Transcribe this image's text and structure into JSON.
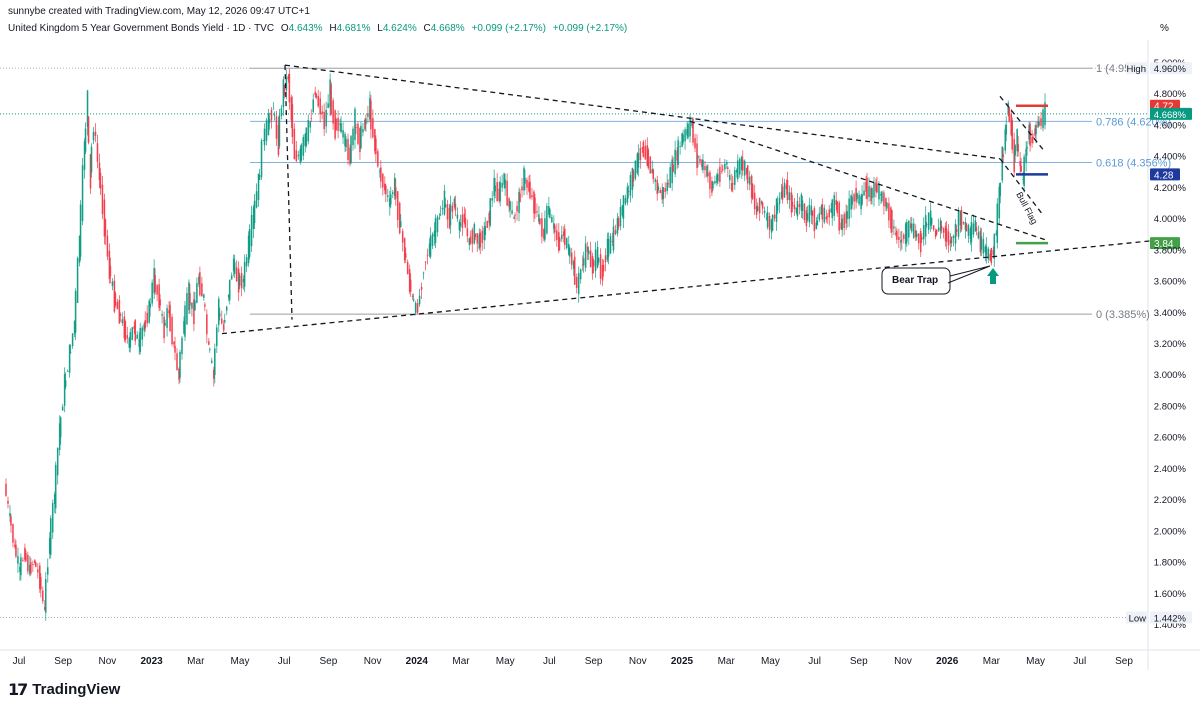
{
  "header": {
    "note": "sunnybe created with TradingView.com, May 12, 2026 09:47 UTC+1",
    "symbol": "United Kingdom 5 Year Government Bonds Yield · 1D · TVC",
    "o_label": "O",
    "o_value": "4.643%",
    "h_label": "H",
    "h_value": "4.681%",
    "l_label": "L",
    "l_value": "4.624%",
    "c_label": "C",
    "c_value": "4.668%",
    "change1": "+0.099 (+2.17%)",
    "change2": "+0.099 (+2.17%)"
  },
  "price_axis_unit": "%",
  "brand": {
    "mark": "17",
    "name": "TradingView"
  },
  "colors": {
    "up": "#089981",
    "down": "#f23645",
    "fib": "#5b9bd5",
    "red_level": "#e53935",
    "blue_level": "#1e3a9e",
    "green_level": "#43a047"
  },
  "chart_data": {
    "type": "candlestick",
    "title": "United Kingdom 5 Year Government Bonds Yield",
    "ylim": [
      1.35,
      5.0
    ],
    "y_ticks": [
      "5.000%",
      "4.800%",
      "4.600%",
      "4.400%",
      "4.200%",
      "4.000%",
      "3.800%",
      "3.600%",
      "3.400%",
      "3.200%",
      "3.000%",
      "2.800%",
      "2.600%",
      "2.400%",
      "2.200%",
      "2.000%",
      "1.800%",
      "1.600%",
      "1.400%"
    ],
    "x_ticks": [
      "Jul",
      "Sep",
      "Nov",
      "2023",
      "Mar",
      "May",
      "Jul",
      "Sep",
      "Nov",
      "2024",
      "Mar",
      "May",
      "Jul",
      "Sep",
      "Nov",
      "2025",
      "Mar",
      "May",
      "Jul",
      "Sep",
      "Nov",
      "2026",
      "Mar",
      "May",
      "Jul",
      "Sep"
    ],
    "x_bold": [
      "2023",
      "2024",
      "2025",
      "2026"
    ],
    "path_points": [
      [
        0,
        2.3
      ],
      [
        5,
        2.1
      ],
      [
        10,
        1.9
      ],
      [
        15,
        1.75
      ],
      [
        20,
        1.85
      ],
      [
        25,
        1.75
      ],
      [
        30,
        1.8
      ],
      [
        35,
        1.7
      ],
      [
        40,
        1.5
      ],
      [
        45,
        1.9
      ],
      [
        50,
        2.2
      ],
      [
        55,
        2.6
      ],
      [
        60,
        2.9
      ],
      [
        65,
        3.1
      ],
      [
        70,
        3.3
      ],
      [
        75,
        3.8
      ],
      [
        80,
        4.4
      ],
      [
        83,
        4.7
      ],
      [
        86,
        4.3
      ],
      [
        90,
        4.6
      ],
      [
        95,
        4.3
      ],
      [
        100,
        4.0
      ],
      [
        105,
        3.7
      ],
      [
        110,
        3.5
      ],
      [
        115,
        3.4
      ],
      [
        120,
        3.3
      ],
      [
        125,
        3.2
      ],
      [
        130,
        3.3
      ],
      [
        135,
        3.2
      ],
      [
        140,
        3.3
      ],
      [
        145,
        3.4
      ],
      [
        150,
        3.6
      ],
      [
        155,
        3.5
      ],
      [
        160,
        3.3
      ],
      [
        165,
        3.4
      ],
      [
        170,
        3.2
      ],
      [
        175,
        3.0
      ],
      [
        180,
        3.3
      ],
      [
        185,
        3.5
      ],
      [
        190,
        3.4
      ],
      [
        195,
        3.6
      ],
      [
        200,
        3.5
      ],
      [
        205,
        3.2
      ],
      [
        210,
        3.0
      ],
      [
        215,
        3.4
      ],
      [
        220,
        3.3
      ],
      [
        225,
        3.5
      ],
      [
        230,
        3.7
      ],
      [
        235,
        3.6
      ],
      [
        240,
        3.6
      ],
      [
        245,
        3.8
      ],
      [
        250,
        4.0
      ],
      [
        255,
        4.2
      ],
      [
        260,
        4.5
      ],
      [
        265,
        4.6
      ],
      [
        270,
        4.7
      ],
      [
        275,
        4.5
      ],
      [
        280,
        4.8
      ],
      [
        285,
        4.9
      ],
      [
        288,
        4.7
      ],
      [
        292,
        4.4
      ],
      [
        297,
        4.4
      ],
      [
        302,
        4.5
      ],
      [
        307,
        4.6
      ],
      [
        312,
        4.8
      ],
      [
        318,
        4.7
      ],
      [
        322,
        4.6
      ],
      [
        327,
        4.8
      ],
      [
        332,
        4.6
      ],
      [
        337,
        4.6
      ],
      [
        342,
        4.5
      ],
      [
        347,
        4.4
      ],
      [
        352,
        4.6
      ],
      [
        357,
        4.5
      ],
      [
        362,
        4.6
      ],
      [
        367,
        4.7
      ],
      [
        372,
        4.5
      ],
      [
        377,
        4.3
      ],
      [
        382,
        4.2
      ],
      [
        387,
        4.1
      ],
      [
        392,
        4.2
      ],
      [
        397,
        4.0
      ],
      [
        402,
        3.8
      ],
      [
        407,
        3.6
      ],
      [
        410,
        3.5
      ],
      [
        414,
        3.4
      ],
      [
        418,
        3.5
      ],
      [
        422,
        3.7
      ],
      [
        427,
        3.8
      ],
      [
        432,
        3.9
      ],
      [
        437,
        4.0
      ],
      [
        442,
        4.1
      ],
      [
        447,
        4.0
      ],
      [
        452,
        4.1
      ],
      [
        457,
        3.95
      ],
      [
        462,
        4.0
      ],
      [
        467,
        3.85
      ],
      [
        472,
        3.9
      ],
      [
        477,
        3.85
      ],
      [
        482,
        3.9
      ],
      [
        487,
        4.0
      ],
      [
        492,
        4.2
      ],
      [
        497,
        4.15
      ],
      [
        502,
        4.25
      ],
      [
        507,
        4.1
      ],
      [
        512,
        4.0
      ],
      [
        517,
        4.1
      ],
      [
        522,
        4.25
      ],
      [
        527,
        4.2
      ],
      [
        532,
        4.1
      ],
      [
        537,
        4.0
      ],
      [
        542,
        3.9
      ],
      [
        547,
        4.05
      ],
      [
        552,
        3.95
      ],
      [
        557,
        3.85
      ],
      [
        562,
        3.9
      ],
      [
        567,
        3.8
      ],
      [
        572,
        3.7
      ],
      [
        576,
        3.55
      ],
      [
        581,
        3.7
      ],
      [
        586,
        3.8
      ],
      [
        591,
        3.7
      ],
      [
        596,
        3.75
      ],
      [
        601,
        3.65
      ],
      [
        606,
        3.8
      ],
      [
        611,
        3.85
      ],
      [
        616,
        3.95
      ],
      [
        621,
        4.05
      ],
      [
        626,
        4.15
      ],
      [
        631,
        4.25
      ],
      [
        636,
        4.35
      ],
      [
        641,
        4.45
      ],
      [
        646,
        4.4
      ],
      [
        651,
        4.3
      ],
      [
        656,
        4.2
      ],
      [
        661,
        4.15
      ],
      [
        666,
        4.2
      ],
      [
        671,
        4.3
      ],
      [
        676,
        4.4
      ],
      [
        681,
        4.5
      ],
      [
        686,
        4.55
      ],
      [
        691,
        4.6
      ],
      [
        696,
        4.4
      ],
      [
        701,
        4.35
      ],
      [
        706,
        4.3
      ],
      [
        711,
        4.2
      ],
      [
        716,
        4.25
      ],
      [
        721,
        4.3
      ],
      [
        726,
        4.35
      ],
      [
        731,
        4.2
      ],
      [
        736,
        4.3
      ],
      [
        741,
        4.35
      ],
      [
        746,
        4.3
      ],
      [
        751,
        4.2
      ],
      [
        756,
        4.05
      ],
      [
        761,
        4.1
      ],
      [
        766,
        4.0
      ],
      [
        771,
        3.95
      ],
      [
        776,
        4.05
      ],
      [
        781,
        4.15
      ],
      [
        786,
        4.2
      ],
      [
        791,
        4.1
      ],
      [
        796,
        4.05
      ],
      [
        801,
        4.1
      ],
      [
        806,
        4.0
      ],
      [
        811,
        4.05
      ],
      [
        816,
        3.95
      ],
      [
        821,
        4.05
      ],
      [
        826,
        4.0
      ],
      [
        831,
        4.05
      ],
      [
        836,
        4.1
      ],
      [
        841,
        3.95
      ],
      [
        846,
        4.0
      ],
      [
        851,
        4.1
      ],
      [
        856,
        4.15
      ],
      [
        861,
        4.1
      ],
      [
        866,
        4.2
      ],
      [
        871,
        4.15
      ],
      [
        876,
        4.2
      ],
      [
        881,
        4.15
      ],
      [
        886,
        4.1
      ],
      [
        891,
        4.0
      ],
      [
        896,
        3.9
      ],
      [
        901,
        3.85
      ],
      [
        906,
        3.9
      ],
      [
        911,
        3.95
      ],
      [
        916,
        3.9
      ],
      [
        921,
        3.85
      ],
      [
        926,
        3.95
      ],
      [
        931,
        4.0
      ],
      [
        936,
        3.9
      ],
      [
        941,
        3.95
      ],
      [
        946,
        3.9
      ],
      [
        951,
        3.85
      ],
      [
        956,
        3.9
      ],
      [
        961,
        4.0
      ],
      [
        966,
        3.95
      ],
      [
        971,
        3.9
      ],
      [
        976,
        3.95
      ],
      [
        981,
        3.85
      ],
      [
        986,
        3.8
      ],
      [
        991,
        3.75
      ],
      [
        994,
        3.78
      ],
      [
        997,
        3.9
      ],
      [
        1000,
        4.1
      ],
      [
        1003,
        4.35
      ],
      [
        1006,
        4.5
      ],
      [
        1009,
        4.7
      ],
      [
        1012,
        4.6
      ],
      [
        1015,
        4.4
      ],
      [
        1018,
        4.5
      ],
      [
        1021,
        4.35
      ],
      [
        1024,
        4.25
      ],
      [
        1027,
        4.4
      ],
      [
        1030,
        4.55
      ],
      [
        1033,
        4.5
      ],
      [
        1036,
        4.55
      ],
      [
        1039,
        4.6
      ],
      [
        1043,
        4.62
      ],
      [
        1046,
        4.668
      ]
    ],
    "last_value": 4.668,
    "high": 4.96,
    "low": 1.442,
    "fib_levels": [
      {
        "label": "1 (4.95",
        "value": 4.96
      },
      {
        "label": "0.786 (4.620%)",
        "value": 4.62
      },
      {
        "label": "0.618 (4.356%)",
        "value": 4.356
      },
      {
        "label": "0 (3.385%)",
        "value": 3.385
      }
    ],
    "horizontal_levels": [
      {
        "label": "4.72",
        "value": 4.72
      },
      {
        "label": "4.28",
        "value": 4.28
      },
      {
        "label": "3.84",
        "value": 3.84
      }
    ],
    "axis_tags": [
      {
        "label": "High",
        "value_label": "4.960%",
        "value": 4.96
      },
      {
        "label": "",
        "value_label": "4.668%",
        "value": 4.668
      },
      {
        "label": "Low",
        "value_label": "1.442%",
        "value": 1.442
      }
    ],
    "annotations": [
      "Bear Trap",
      "Bull Flag"
    ],
    "grid": false
  }
}
